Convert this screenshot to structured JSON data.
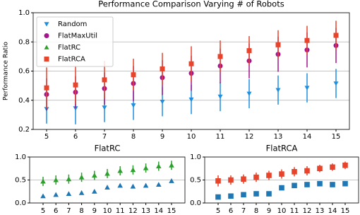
{
  "chart_data": [
    {
      "type": "errorbar",
      "title": "Performance Comparison Varying # of Robots",
      "y_label": "Performance Ratio",
      "categories": [
        "5",
        "6",
        "7",
        "8",
        "9",
        "10",
        "11",
        "12",
        "13",
        "14",
        "15"
      ],
      "ylim": [
        0.2,
        1.0
      ],
      "yticks": [
        0.2,
        0.4,
        0.6,
        0.8,
        {
          "value": 1.0,
          "label": "1.0"
        }
      ],
      "grid": true,
      "legend": "upper left",
      "series": [
        {
          "name": "Random",
          "color": "#1f8fe0",
          "marker": "v",
          "values": [
            0.34,
            0.345,
            0.35,
            0.365,
            0.39,
            0.405,
            0.425,
            0.445,
            0.47,
            0.485,
            0.515
          ],
          "errors": [
            0.1,
            0.11,
            0.1,
            0.1,
            0.1,
            0.1,
            0.1,
            0.1,
            0.1,
            0.1,
            0.1
          ]
        },
        {
          "name": "FlatMaxUtil",
          "color": "#a3158f",
          "marker": "o",
          "values": [
            0.44,
            0.455,
            0.48,
            0.515,
            0.555,
            0.585,
            0.635,
            0.67,
            0.715,
            0.745,
            0.775
          ],
          "errors": [
            0.11,
            0.11,
            0.11,
            0.12,
            0.12,
            0.12,
            0.12,
            0.12,
            0.12,
            0.12,
            0.12
          ]
        },
        {
          "name": "FlatRC",
          "color": "#2ca02c",
          "marker": "^",
          "values": [
            null,
            null,
            null,
            null,
            null,
            null,
            null,
            null,
            null,
            null,
            null
          ],
          "errors": [
            null,
            null,
            null,
            null,
            null,
            null,
            null,
            null,
            null,
            null,
            null
          ]
        },
        {
          "name": "FlatRCA",
          "color": "#e8432b",
          "marker": "s",
          "values": [
            0.485,
            0.505,
            0.54,
            0.575,
            0.615,
            0.65,
            0.7,
            0.74,
            0.78,
            0.81,
            0.845
          ],
          "errors": [
            0.14,
            0.13,
            0.13,
            0.11,
            0.11,
            0.12,
            0.11,
            0.1,
            0.1,
            0.1,
            0.1
          ]
        }
      ]
    },
    {
      "type": "errorbar",
      "title": "FlatRC",
      "categories": [
        "5",
        "6",
        "7",
        "8",
        "9",
        "10",
        "11",
        "12",
        "13",
        "14",
        "15"
      ],
      "ylim": [
        0.0,
        1.0
      ],
      "yticks": [
        {
          "value": 0.0,
          "label": "0.0"
        },
        0.5,
        {
          "value": 1.0,
          "label": "1.0"
        }
      ],
      "grid": true,
      "series": [
        {
          "color": "#2ca02c",
          "marker": "^",
          "values": [
            0.47,
            0.5,
            0.52,
            0.56,
            0.6,
            0.64,
            0.7,
            0.72,
            0.76,
            0.8,
            0.82
          ],
          "errors": [
            0.1,
            0.1,
            0.1,
            0.1,
            0.1,
            0.1,
            0.1,
            0.1,
            0.1,
            0.1,
            0.1
          ]
        },
        {
          "color": "#1f77b4",
          "marker": "^",
          "values": [
            0.15,
            0.18,
            0.2,
            0.22,
            0.25,
            0.34,
            0.38,
            0.36,
            0.38,
            0.4,
            0.48
          ],
          "errors": [
            0,
            0,
            0,
            0,
            0,
            0,
            0,
            0,
            0,
            0,
            0
          ]
        }
      ]
    },
    {
      "type": "errorbar",
      "title": "FlatRCA",
      "categories": [
        "5",
        "6",
        "7",
        "8",
        "9",
        "10",
        "11",
        "12",
        "13",
        "14",
        "15"
      ],
      "ylim": [
        0.0,
        1.0
      ],
      "yticks": [
        {
          "value": 0.0,
          "label": "0.0"
        },
        0.5,
        {
          "value": 1.0,
          "label": "1.0"
        }
      ],
      "grid": true,
      "series": [
        {
          "color": "#e8432b",
          "marker": "s",
          "values": [
            0.48,
            0.5,
            0.52,
            0.56,
            0.6,
            0.63,
            0.68,
            0.7,
            0.75,
            0.78,
            0.82
          ],
          "errors": [
            0.12,
            0.1,
            0.1,
            0.1,
            0.1,
            0.1,
            0.1,
            0.1,
            0.08,
            0.08,
            0.08
          ]
        },
        {
          "color": "#1f77b4",
          "marker": "s",
          "values": [
            0.13,
            0.15,
            0.18,
            0.2,
            0.2,
            0.33,
            0.38,
            0.4,
            0.42,
            0.4,
            0.42
          ],
          "errors": [
            0,
            0,
            0,
            0,
            0,
            0,
            0,
            0,
            0,
            0,
            0
          ]
        }
      ]
    }
  ]
}
